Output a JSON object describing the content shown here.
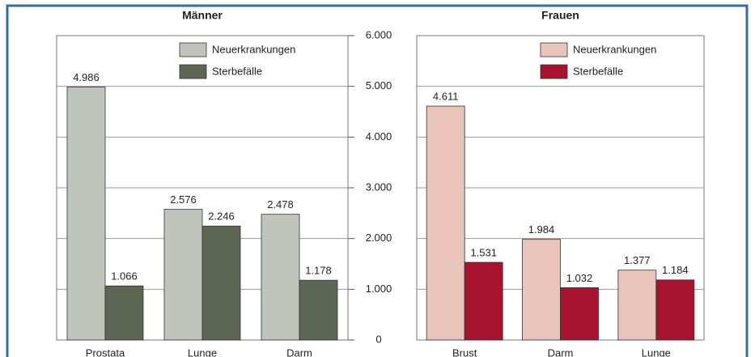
{
  "chart_data": [
    {
      "type": "bar",
      "title": "Männer",
      "categories": [
        "Prostata",
        "Lunge",
        "Darm"
      ],
      "series": [
        {
          "name": "Neuerkrankungen",
          "color": "#bfc3bb",
          "values": [
            4986,
            2576,
            2478
          ],
          "value_labels": [
            "4.986",
            "2.576",
            "2.478"
          ]
        },
        {
          "name": "Sterbefälle",
          "color": "#5d6553",
          "values": [
            1066,
            2246,
            1178
          ],
          "value_labels": [
            "1.066",
            "2.246",
            "1.178"
          ]
        }
      ],
      "ylim": [
        0,
        6000
      ],
      "yticks": [
        0,
        {
          "value": 1000,
          "label": "1.000"
        },
        {
          "value": 2000,
          "label": "2.000"
        },
        {
          "value": 3000,
          "label": "3.000"
        },
        {
          "value": 4000,
          "label": "4.000"
        },
        {
          "value": 5000,
          "label": "5.000"
        },
        {
          "value": 6000,
          "label": "6.000"
        }
      ],
      "grid": true
    },
    {
      "type": "bar",
      "title": "Frauen",
      "categories": [
        "Brust",
        "Darm",
        "Lunge"
      ],
      "series": [
        {
          "name": "Neuerkrankungen",
          "color": "#e9c4ba",
          "values": [
            4611,
            1984,
            1377
          ],
          "value_labels": [
            "4.611",
            "1.984",
            "1.377"
          ]
        },
        {
          "name": "Sterbefälle",
          "color": "#a8132f",
          "values": [
            1531,
            1032,
            1184
          ],
          "value_labels": [
            "1.531",
            "1.032",
            "1.184"
          ]
        }
      ],
      "ylim": [
        0,
        6000
      ],
      "yticks": [
        0,
        {
          "value": 1000,
          "label": "1.000"
        },
        {
          "value": 2000,
          "label": "2.000"
        },
        {
          "value": 3000,
          "label": "3.000"
        },
        {
          "value": 4000,
          "label": "4.000"
        },
        {
          "value": 5000,
          "label": "5.000"
        },
        {
          "value": 6000,
          "label": "6.000"
        }
      ],
      "grid": true
    }
  ]
}
